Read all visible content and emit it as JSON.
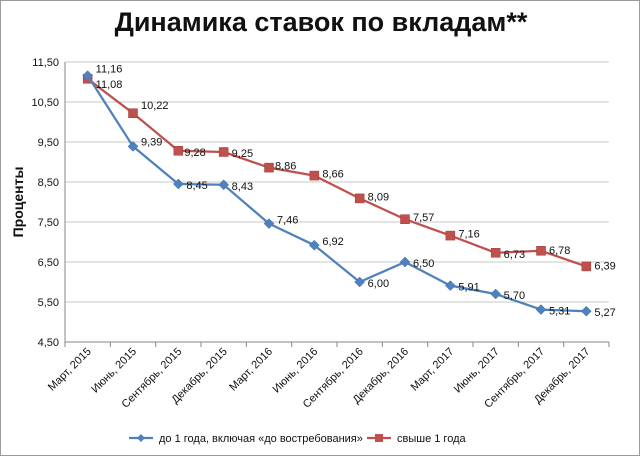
{
  "chart_data": {
    "type": "line",
    "title": "Динамика ставок по вкладам**",
    "ylabel": "Проценты",
    "xlabel": "",
    "ylim": [
      4.5,
      11.5
    ],
    "yticks": [
      "4,50",
      "5,50",
      "6,50",
      "7,50",
      "8,50",
      "9,50",
      "10,50",
      "11,50"
    ],
    "categories": [
      "Март, 2015",
      "Июнь, 2015",
      "Сентябрь, 2015",
      "Декабрь, 2015",
      "Март, 2016",
      "Июнь, 2016",
      "Сентябрь, 2016",
      "Декабрь, 2016",
      "Март, 2017",
      "Июнь, 2017",
      "Сентябрь, 2017",
      "Декабрь, 2017"
    ],
    "grid": true,
    "legend_position": "bottom",
    "series": [
      {
        "name": "до 1 года, включая «до востребования»",
        "color": "#4f81bd",
        "marker": "diamond",
        "values": [
          11.16,
          9.39,
          8.45,
          8.43,
          7.46,
          6.92,
          6.0,
          6.5,
          5.91,
          5.7,
          5.31,
          5.27
        ],
        "labels": [
          "11,16",
          "9,39",
          "8,45",
          "8,43",
          "7,46",
          "6,92",
          "6,00",
          "6,50",
          "5,91",
          "5,70",
          "5,31",
          "5,27"
        ]
      },
      {
        "name": "свыше 1 года",
        "color": "#c0504d",
        "marker": "square",
        "values": [
          11.08,
          10.22,
          9.28,
          9.25,
          8.86,
          8.66,
          8.09,
          7.57,
          7.16,
          6.73,
          6.78,
          6.39
        ],
        "labels": [
          "11,08",
          "10,22",
          "9,28",
          "9,25",
          "8,86",
          "8,66",
          "8,09",
          "7,57",
          "7,16",
          "6,73",
          "6,78",
          "6,39"
        ]
      }
    ]
  }
}
